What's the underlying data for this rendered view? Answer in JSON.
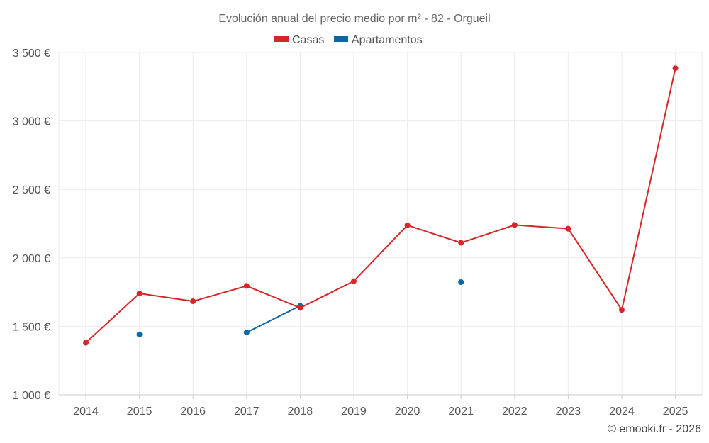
{
  "chart_data": {
    "type": "line",
    "title": "Evolución anual del precio medio por m² - 82 - Orgueil",
    "xlabel": "",
    "ylabel": "",
    "categories": [
      "2014",
      "2015",
      "2016",
      "2017",
      "2018",
      "2019",
      "2020",
      "2021",
      "2022",
      "2023",
      "2024",
      "2025"
    ],
    "ylim": [
      1000,
      3500
    ],
    "yticks": [
      1000,
      1500,
      2000,
      2500,
      3000,
      3500
    ],
    "ytick_labels": [
      "1 000 €",
      "1 500 €",
      "2 000 €",
      "2 500 €",
      "3 000 €",
      "3 500 €"
    ],
    "grid": true,
    "legend_position": "top-center",
    "series": [
      {
        "name": "Casas",
        "color": "#d62728",
        "values": [
          1380,
          1740,
          1683,
          1795,
          1635,
          1830,
          2238,
          2110,
          2240,
          2213,
          1620,
          3385
        ]
      },
      {
        "name": "Apartamentos",
        "color": "#0868a4",
        "values": [
          null,
          1440,
          null,
          1455,
          1650,
          null,
          null,
          1823,
          null,
          null,
          null,
          null
        ]
      }
    ]
  },
  "credit": "© emooki.fr - 2026"
}
